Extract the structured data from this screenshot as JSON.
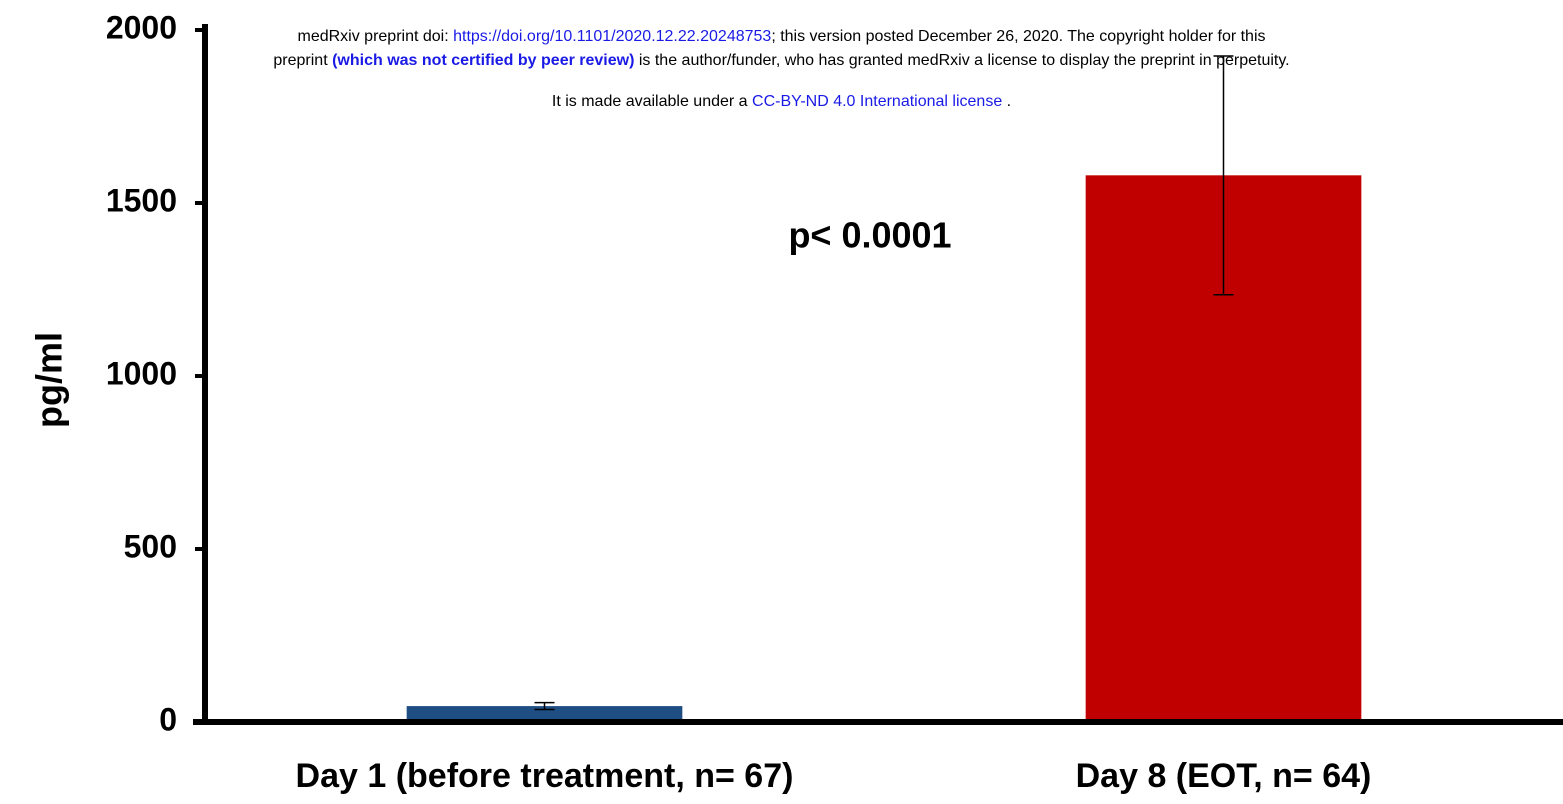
{
  "header": {
    "line1": {
      "prefix": "medRxiv preprint doi: ",
      "link": "https://doi.org/10.1101/2020.12.22.20248753",
      "suffix": "; this version posted December 26, 2020. The copyright holder for this"
    },
    "line2": {
      "prefix": "preprint ",
      "emphasis": "(which was not certified by peer review)",
      "suffix": " is the author/funder, who has granted medRxiv a license to display the preprint in perpetuity."
    },
    "line3": {
      "prefix": "It is made available under a ",
      "link": "CC-BY-ND 4.0 International license",
      "suffix": " ."
    }
  },
  "chart_data": {
    "type": "bar",
    "y_label": "pg/ml",
    "annotation": "p< 0.0001",
    "categories": [
      "Day 1 (before treatment, n= 67)",
      "Day 8 (EOT, n= 64)"
    ],
    "values": [
      46,
      1580
    ],
    "errors": [
      10,
      345
    ],
    "colors": [
      "#1f4e82",
      "#c00000"
    ],
    "ylim": [
      0,
      2000
    ],
    "yticks": [
      0,
      500,
      1000,
      1500,
      2000
    ],
    "grid": false
  }
}
